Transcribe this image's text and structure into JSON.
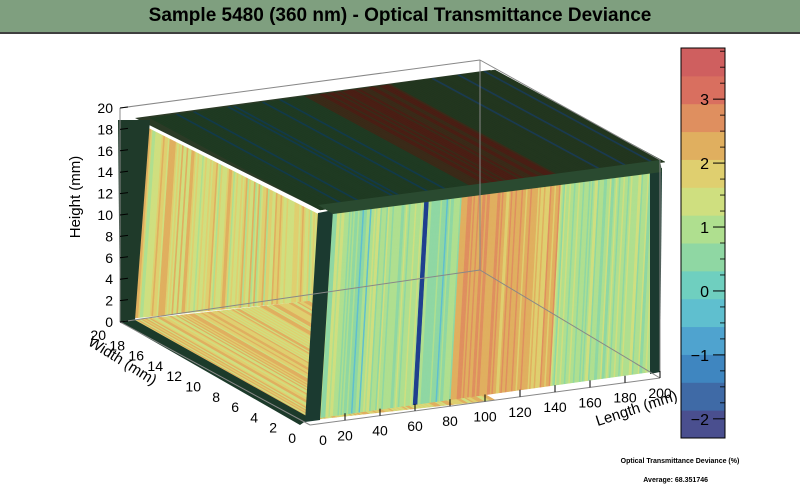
{
  "chart_data": {
    "type": "heatmap",
    "subtype": "3d-box-surface",
    "title": "Sample 5480 (360 nm) - Optical Transmittance Deviance",
    "xlabel": "Length (mm)",
    "ylabel": "Width (mm)",
    "zlabel": "Height (mm)",
    "xlim": [
      0,
      200
    ],
    "ylim": [
      0,
      20
    ],
    "zlim": [
      0,
      20
    ],
    "x_ticks": [
      "20",
      "40",
      "60",
      "80",
      "100",
      "120",
      "140",
      "160",
      "180",
      "200"
    ],
    "y_ticks": [
      "0",
      "2",
      "4",
      "6",
      "8",
      "10",
      "12",
      "14",
      "16",
      "18",
      "20"
    ],
    "z_ticks": [
      "0",
      "2",
      "4",
      "6",
      "8",
      "10",
      "12",
      "14",
      "16",
      "18",
      "20"
    ],
    "colorbar": {
      "label": "Optical Transmittance Deviance (%)",
      "range": [
        -2.3,
        3.8
      ],
      "ticks": [
        "−2",
        "−1",
        "0",
        "1",
        "2",
        "3"
      ]
    },
    "average_label": "Average: 68.351746"
  },
  "colors": {
    "title_bar": "#7f9f7f",
    "palette": [
      "#4a4f8f",
      "#3f6aa6",
      "#3f86c0",
      "#4fa3cf",
      "#5fbfcf",
      "#6fcfbf",
      "#8fd7a3",
      "#afdf8f",
      "#cfdf7f",
      "#dfcf6f",
      "#e0af5f",
      "#df8f5f",
      "#d96f5f",
      "#cf5f5f"
    ]
  }
}
